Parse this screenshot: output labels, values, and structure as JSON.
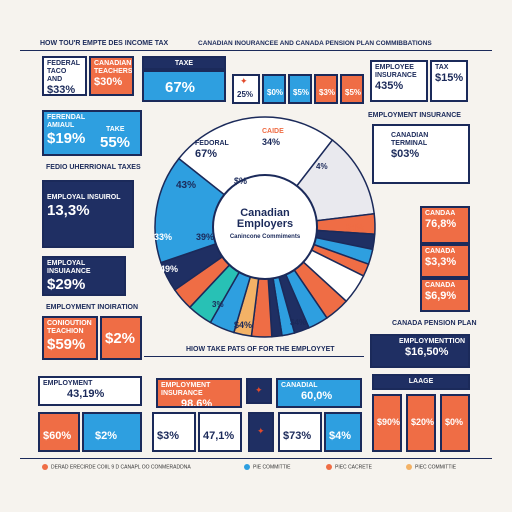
{
  "headings": {
    "top_left": "HOW TOU'R EMPTE DES INCOME TAX",
    "top_right": "CANADIAN INOURANCEE AND CANADA PENSION PLAN COMMIBBATIONS",
    "left_mid": "FEDIO UHERRIONAL TAXES",
    "employment_insurance": "EMPLOYMENT INSURANCE",
    "employment_inohration": "EMPLOYMENT INOIRATION",
    "canada_pension_plan": "CANADA PENSION PLAN",
    "how_take": "HIOW TAKE PATS OF FOR THE EMPLOYYET"
  },
  "center": {
    "title": "Canadian Employers",
    "subtitle": "Canincone Commiments"
  },
  "cards": {
    "federal": {
      "label": "FEDERAL TACO AND",
      "value": "$33%"
    },
    "canadian": {
      "label": "CANADIAN TEACHERS",
      "value": "$30%"
    },
    "taxe": {
      "label": "TAXE",
      "value": "67%"
    },
    "emp_insurance": {
      "label": "EMPLOYEE INSURANCE",
      "value": "435%"
    },
    "tax_top": {
      "label": "TAX",
      "value": "$15%"
    },
    "ferendal": {
      "label": "FERENDAL AMIAUL",
      "value": "$19%"
    },
    "take": {
      "label": "TAKE",
      "value": "55%"
    },
    "employal": {
      "label": "EMPLOYAL INSUIROL",
      "value": "13,3%"
    },
    "employal_ins": {
      "label": "EMPLOYAL INSUIAANCE",
      "value": "$29%"
    },
    "conioution": {
      "label": "CONIOUTION TEACHION",
      "value": "$59%"
    },
    "cioution_val": {
      "label": "",
      "value": "$2%"
    },
    "employment_bottom": {
      "label": "EMPLOYMENT",
      "value": "43,19%"
    },
    "canadian_term": {
      "label": "CANADIAN TERMINAL",
      "value": "$03%"
    },
    "candaa": {
      "label": "CANDAA",
      "value": "76,8%"
    },
    "canada2": {
      "label": "CANADA",
      "value": "$3,3%"
    },
    "canada3": {
      "label": "CANADA",
      "value": "$6,9%"
    },
    "empl_pension": {
      "label": "EMPLOYMENTTION",
      "value": "$16,50%"
    },
    "emp_ins_bottom": {
      "label": "EMPLOYMENT INSURANCE",
      "value": "98,6%"
    },
    "canadial_bottom": {
      "label": "CANADIAL",
      "value": "60,0%"
    },
    "laage": {
      "label": "LAAGE",
      "value": ""
    },
    "bl1": {
      "value": "$60%"
    },
    "bl2": {
      "value": "$2%"
    },
    "bl3": {
      "value": "$3%"
    },
    "bl4": {
      "value": "47,1%"
    },
    "bl5": {
      "value": "$73%"
    },
    "bl6": {
      "value": "$4%"
    },
    "bl7": {
      "value": "$90%"
    },
    "bl8": {
      "value": "$20%"
    },
    "bl9": {
      "value": "$0%"
    },
    "top_mid1": {
      "value": "25%"
    },
    "top_mid2": {
      "value": "$0%"
    },
    "top_mid3": {
      "value": "$5%"
    },
    "top_mid4": {
      "value": "$3%"
    },
    "top_mid5": {
      "value": "$5%"
    }
  },
  "pie_labels": {
    "fedoral": {
      "label": "FEDORAL",
      "value": "67%"
    },
    "caide": {
      "label": "CAIDE",
      "value": "34%"
    },
    "left1": {
      "value": "43%"
    },
    "left2": {
      "value": "$%"
    },
    "mid1": {
      "value": "33%"
    },
    "mid2": {
      "value": "39%"
    },
    "mid3": {
      "value": "49%"
    },
    "r1": {
      "value": "$4%"
    },
    "r2": {
      "value": "4%"
    },
    "b1": {
      "value": "3%"
    },
    "b2": {
      "value": "$4%"
    },
    "b3": {
      "value": "$4%"
    }
  },
  "legend": [
    {
      "label": "DERAD ERECIRDE COIIL 9 D CANAPL OO CONMERADDNA",
      "color": "#ef6d45"
    },
    {
      "label": "PIE COMMITTIE",
      "color": "#2e9fe0"
    },
    {
      "label": "PIEC CACRETE",
      "color": "#ef6d45"
    },
    {
      "label": "PIEC COMMITTIE",
      "color": "#f3b266"
    }
  ],
  "colors": {
    "navy": "#1f2f63",
    "orange": "#ef6d45",
    "blue": "#2e9fe0",
    "teal": "#28c1b5",
    "gray": "#c8ccd6"
  },
  "chart_data": {
    "type": "pie",
    "title": "Canadian Employers",
    "subtitle": "Canincone Commiments",
    "slices": [
      {
        "label": "FEDORAL",
        "value": 67,
        "color": "#ffffff"
      },
      {
        "label": "CAIDE",
        "value": 34,
        "color": "#e9e9ee"
      },
      {
        "label": "",
        "value": 8,
        "color": "#ef6d45"
      },
      {
        "label": "",
        "value": 6,
        "color": "#1f2f63"
      },
      {
        "label": "",
        "value": 6,
        "color": "#2e9fe0"
      },
      {
        "label": "",
        "value": 5,
        "color": "#ef6d45"
      },
      {
        "label": "",
        "value": 12,
        "color": "#ffffff"
      },
      {
        "label": "",
        "value": 10,
        "color": "#ef6d45"
      },
      {
        "label": "",
        "value": 8,
        "color": "#2e9fe0"
      },
      {
        "label": "",
        "value": 6,
        "color": "#1f2f63"
      },
      {
        "label": "",
        "value": 5,
        "color": "#2e9fe0"
      },
      {
        "label": "",
        "value": 4,
        "color": "#1f2f63"
      },
      {
        "label": "",
        "value": 8,
        "color": "#ef6d45"
      },
      {
        "label": "",
        "value": 7,
        "color": "#f3b266"
      },
      {
        "label": "",
        "value": 10,
        "color": "#2e9fe0"
      },
      {
        "label": "",
        "value": 10,
        "color": "#28c1b5"
      },
      {
        "label": "",
        "value": 9,
        "color": "#ef6d45"
      },
      {
        "label": "",
        "value": 12,
        "color": "#1f2f63"
      },
      {
        "label": "",
        "value": 43,
        "color": "#2e9fe0"
      }
    ]
  }
}
